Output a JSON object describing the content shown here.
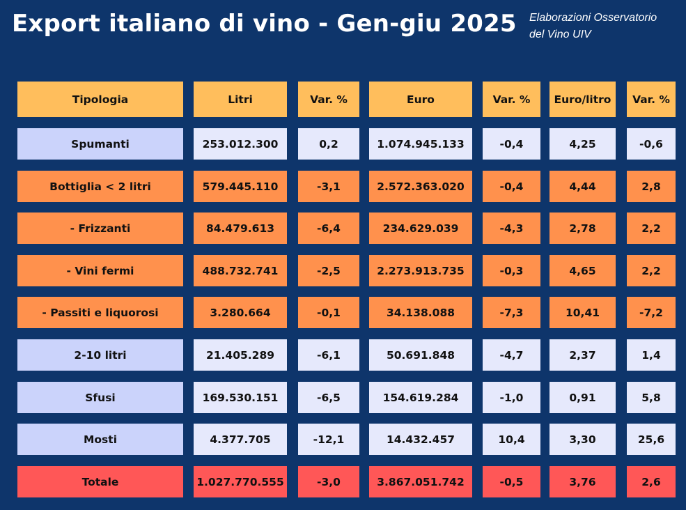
{
  "header": {
    "title": "Export italiano di vino - Gen-giu 2025",
    "source_line1": "Elaborazioni Osservatorio",
    "source_line2": "del Vino UIV"
  },
  "colors": {
    "background": "#0e356b",
    "header_cell": "#ffbe5c",
    "light_cell": "#e6e9fc",
    "light_label_cell": "#cbd3fb",
    "orange_cell": "#ff914d",
    "total_cell": "#ff5757"
  },
  "table": {
    "columns": [
      "Tipologia",
      "Litri",
      "Var. %",
      "Euro",
      "Var. %",
      "Euro/litro",
      "Var. %"
    ],
    "rows": [
      {
        "style": "light",
        "cells": [
          "Spumanti",
          "253.012.300",
          "0,2",
          "1.074.945.133",
          "-0,4",
          "4,25",
          "-0,6"
        ]
      },
      {
        "style": "orange",
        "cells": [
          "Bottiglia < 2 litri",
          "579.445.110",
          "-3,1",
          "2.572.363.020",
          "-0,4",
          "4,44",
          "2,8"
        ]
      },
      {
        "style": "orange",
        "cells": [
          "- Frizzanti",
          "84.479.613",
          "-6,4",
          "234.629.039",
          "-4,3",
          "2,78",
          "2,2"
        ]
      },
      {
        "style": "orange",
        "cells": [
          "- Vini fermi",
          "488.732.741",
          "-2,5",
          "2.273.913.735",
          "-0,3",
          "4,65",
          "2,2"
        ]
      },
      {
        "style": "orange",
        "cells": [
          "- Passiti e liquorosi",
          "3.280.664",
          "-0,1",
          "34.138.088",
          "-7,3",
          "10,41",
          "-7,2"
        ]
      },
      {
        "style": "light",
        "cells": [
          "2-10 litri",
          "21.405.289",
          "-6,1",
          "50.691.848",
          "-4,7",
          "2,37",
          "1,4"
        ]
      },
      {
        "style": "light",
        "cells": [
          "Sfusi",
          "169.530.151",
          "-6,5",
          "154.619.284",
          "-1,0",
          "0,91",
          "5,8"
        ]
      },
      {
        "style": "light",
        "cells": [
          "Mosti",
          "4.377.705",
          "-12,1",
          "14.432.457",
          "10,4",
          "3,30",
          "25,6"
        ]
      },
      {
        "style": "total",
        "cells": [
          "Totale",
          "1.027.770.555",
          "-3,0",
          "3.867.051.742",
          "-0,5",
          "3,76",
          "2,6"
        ]
      }
    ]
  }
}
